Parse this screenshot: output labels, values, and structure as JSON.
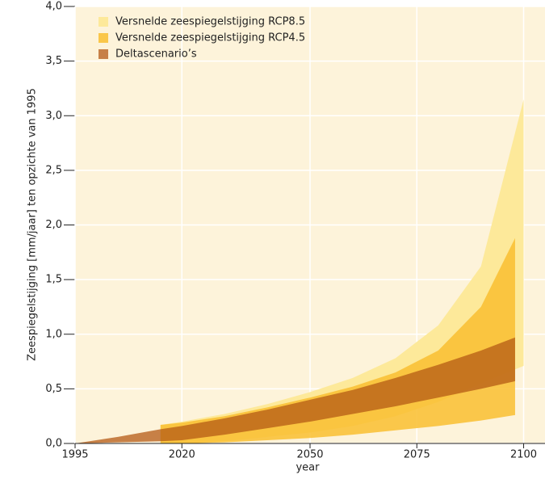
{
  "chart_data": {
    "type": "band",
    "xlabel": "year",
    "ylabel": "Zeespiegelstijging [mm/jaar] ten opzichte van 1995",
    "xlim": [
      1995,
      2105
    ],
    "ylim": [
      0,
      4.0
    ],
    "xticks": [
      1995,
      2020,
      2050,
      2075,
      2100
    ],
    "yticks": [
      {
        "value": 0,
        "label": "0,0"
      },
      {
        "value": 0.5,
        "label": "0,5"
      },
      {
        "value": 1.0,
        "label": "1,0"
      },
      {
        "value": 1.5,
        "label": "1,5"
      },
      {
        "value": 2.0,
        "label": "2,0"
      },
      {
        "value": 2.5,
        "label": "2,5"
      },
      {
        "value": 3.0,
        "label": "3,0"
      },
      {
        "value": 3.5,
        "label": "3,5"
      },
      {
        "value": 4.0,
        "label": "4,0"
      }
    ],
    "grid": true,
    "legend": "upper left",
    "series": [
      {
        "name": "Versnelde zeespiegelstijging RCP8.5",
        "color": "#fde99a",
        "opacity": 1,
        "x": [
          2015,
          2020,
          2030,
          2040,
          2050,
          2060,
          2070,
          2080,
          2090,
          2100
        ],
        "high": [
          0.17,
          0.2,
          0.27,
          0.36,
          0.47,
          0.6,
          0.78,
          1.08,
          1.62,
          3.15
        ],
        "low": [
          0,
          0,
          0.02,
          0.06,
          0.1,
          0.16,
          0.25,
          0.38,
          0.55,
          0.71
        ]
      },
      {
        "name": "Versnelde zeespiegelstijging RCP4.5",
        "color": "#f9be30",
        "opacity": 0.85,
        "x": [
          2015,
          2020,
          2030,
          2040,
          2050,
          2060,
          2070,
          2080,
          2090,
          2098
        ],
        "high": [
          0.17,
          0.19,
          0.25,
          0.33,
          0.42,
          0.52,
          0.65,
          0.85,
          1.25,
          1.88
        ],
        "low": [
          0,
          0,
          0.01,
          0.03,
          0.05,
          0.08,
          0.12,
          0.16,
          0.21,
          0.26
        ]
      },
      {
        "name": "Deltascenario’s",
        "color": "#b45a14",
        "opacity": 0.75,
        "x": [
          1995,
          2005,
          2015,
          2020,
          2030,
          2040,
          2050,
          2060,
          2070,
          2080,
          2090,
          2098
        ],
        "high": [
          0,
          0.06,
          0.13,
          0.16,
          0.23,
          0.31,
          0.4,
          0.49,
          0.6,
          0.72,
          0.85,
          0.97
        ],
        "low": [
          0,
          0.01,
          0.02,
          0.03,
          0.08,
          0.14,
          0.2,
          0.27,
          0.34,
          0.42,
          0.5,
          0.57
        ]
      }
    ]
  }
}
